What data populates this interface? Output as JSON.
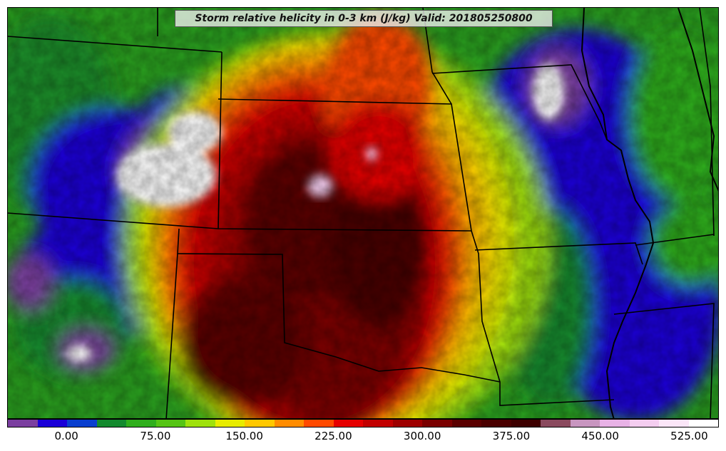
{
  "title": "Storm relative helicity in 0-3 km (J/kg) Valid: 201805250800",
  "colorbar": {
    "colors": [
      "#7b3fa0",
      "#1a00d8",
      "#0a3fcf",
      "#138a2e",
      "#2fae1c",
      "#55c414",
      "#9fe10c",
      "#e8ec00",
      "#ffc800",
      "#ff8c00",
      "#ff4a00",
      "#e60000",
      "#c20000",
      "#9e0000",
      "#7a0000",
      "#5a0000",
      "#4a0000",
      "#3d0000",
      "#8a4a5e",
      "#c896c0",
      "#e8b2e6",
      "#f4cdf0",
      "#fbe6f8",
      "#ffffff"
    ],
    "tick_labels": [
      "0.00",
      "75.00",
      "150.00",
      "225.00",
      "300.00",
      "375.00",
      "450.00",
      "525.00"
    ]
  },
  "palette": {
    "border": "#000000",
    "water": "#000000"
  }
}
